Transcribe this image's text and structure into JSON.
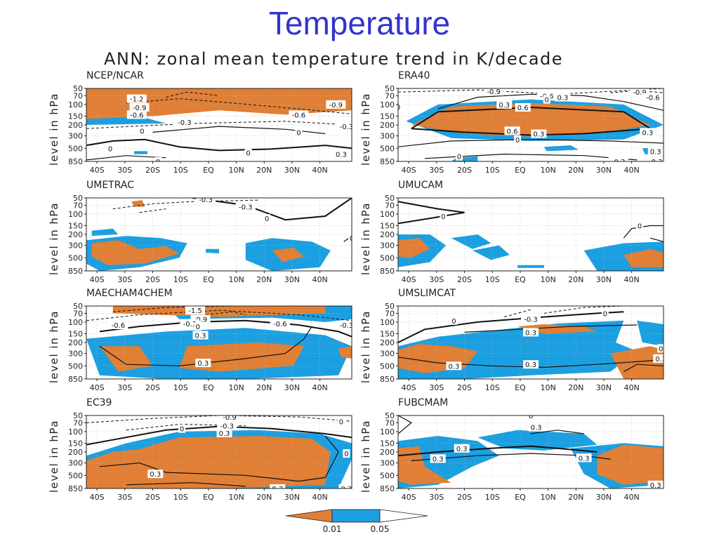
{
  "slide_title": "Temperature",
  "figure_title": "ANN: zonal mean temperature trend in K/decade",
  "colors": {
    "orange": "#e07f35",
    "blue": "#1b9fe0",
    "contour": "#111111",
    "grid": "#bbbbbb",
    "title": "#3333cc"
  },
  "legend": {
    "labels": [
      "0.01",
      "0.05"
    ],
    "meaning": "significance levels: orange = 0.01, blue = 0.05"
  },
  "chart_data": {
    "type": "heatmap",
    "ylabel": "level in hPa",
    "y_ticks": [
      "50",
      "70",
      "100",
      "150",
      "200",
      "300",
      "500",
      "850"
    ],
    "x_ticks": [
      "40S",
      "30S",
      "20S",
      "10S",
      "EQ",
      "10N",
      "20N",
      "30N",
      "40N"
    ],
    "panels": [
      {
        "name": "NCEP/NCAR",
        "contour_labels": [
          "-1.2",
          "-0.9",
          "-0.6",
          "-0.9",
          "-0.6",
          "-0.3",
          "-0.3",
          "0",
          "0",
          "0",
          "0",
          "0",
          "0.3"
        ]
      },
      {
        "name": "ERA40",
        "contour_labels": [
          "-0.9",
          "-0.6",
          "0.3",
          "-0.9",
          "-0.6",
          "0",
          "0",
          "0.3",
          "0.6",
          "0.6",
          "0.3",
          "0",
          "0.3",
          "0",
          "0.3",
          "-0.3",
          "-0.3"
        ]
      },
      {
        "name": "UMETRAC",
        "contour_labels": [
          "-0.3",
          "-0.3",
          "0",
          "0"
        ]
      },
      {
        "name": "UMUCAM",
        "contour_labels": [
          "0",
          "0"
        ]
      },
      {
        "name": "MAECHAM4CHEM",
        "contour_labels": [
          "-1.5",
          "-0.9",
          "-0.6",
          "-0.3",
          "0",
          "-0.6",
          "-0.3",
          "0.3",
          "0.3"
        ]
      },
      {
        "name": "UMSLIMCAT",
        "contour_labels": [
          "-0.3",
          "0",
          "0",
          "0.3",
          "0.3",
          "0.3",
          "0",
          "0.3"
        ]
      },
      {
        "name": "EC39",
        "contour_labels": [
          "-0.9",
          "-0.3",
          "0",
          "0",
          "0.3",
          "0.3",
          "0.3",
          "0.3",
          "0"
        ]
      },
      {
        "name": "FUBCMAM",
        "contour_labels": [
          "0",
          "0.3",
          "0.3",
          "0.3",
          "0.3",
          "0.3"
        ]
      }
    ]
  }
}
